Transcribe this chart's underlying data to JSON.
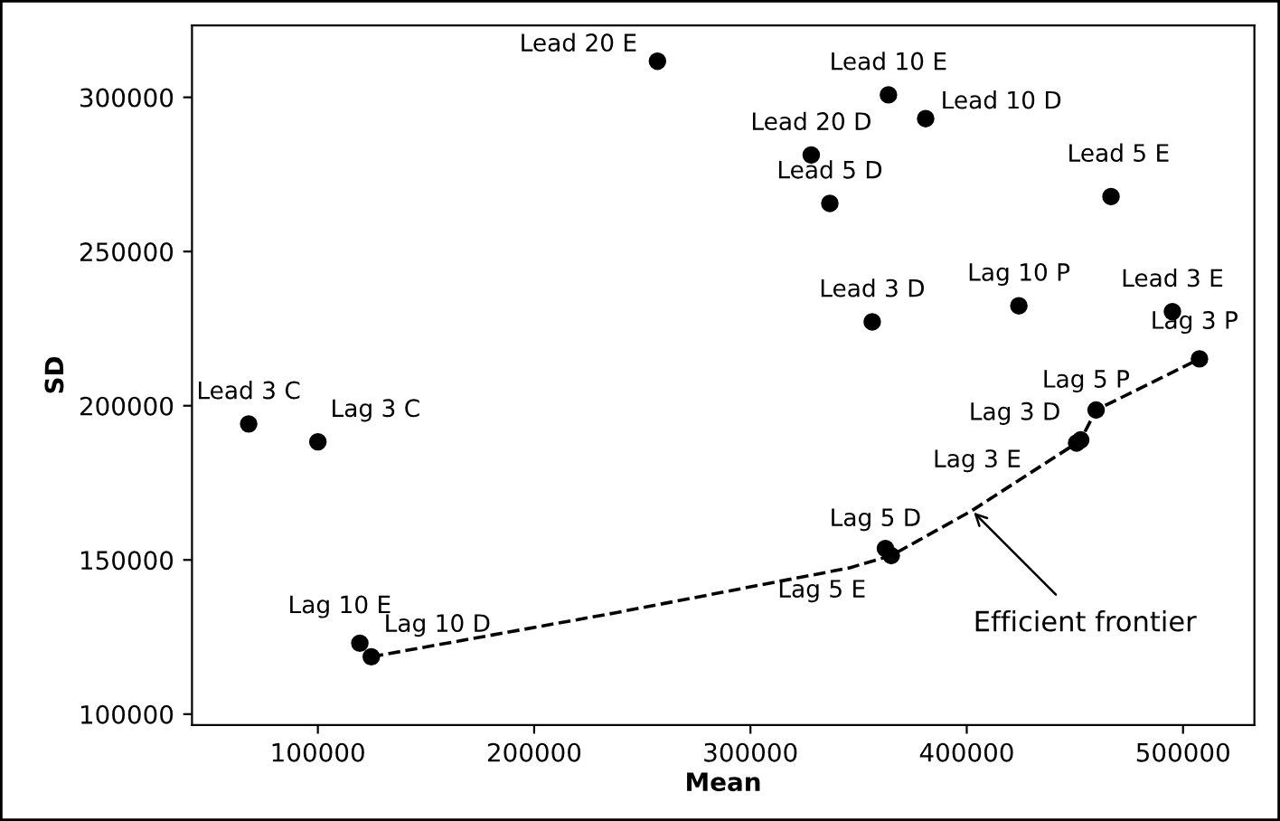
{
  "chart_data": {
    "type": "scatter",
    "xlabel": "Mean",
    "ylabel": "SD",
    "xlim": [
      41800,
      533000
    ],
    "ylim": [
      96500,
      323300
    ],
    "xticks": [
      100000,
      200000,
      300000,
      400000,
      500000
    ],
    "yticks": [
      100000,
      150000,
      200000,
      250000,
      300000
    ],
    "grid": false,
    "legend": false,
    "marker": "circle",
    "series": [
      {
        "color": "#000000",
        "x": [
          257000,
          363800,
          381000,
          328100,
          336700,
          466700,
          356300,
          424100,
          495100,
          507600,
          459800,
          452700,
          450800,
          362400,
          365100,
          68000,
          100000,
          119400,
          124700
        ],
        "values": [
          311700,
          300800,
          293100,
          281300,
          265600,
          267800,
          227200,
          232400,
          230500,
          215200,
          198600,
          188900,
          187900,
          153700,
          151400,
          194100,
          188300,
          123000,
          118600
        ]
      },
      {
        "type": "line",
        "color": "#000000",
        "line_style": "dashed",
        "marker": "none",
        "x": [
          124700,
          237100,
          345600,
          365100,
          402400,
          450800,
          452700,
          459800,
          507600
        ],
        "values": [
          118600,
          132800,
          147400,
          151400,
          166000,
          187900,
          188900,
          198600,
          215200
        ]
      }
    ],
    "annotations": [
      {
        "text": "Lead 20 E",
        "x": 257000,
        "y": 311700
      },
      {
        "text": "Lead 10 E",
        "x": 363800,
        "y": 300800
      },
      {
        "text": "Lead 10 D",
        "x": 381000,
        "y": 293100
      },
      {
        "text": "Lead 20 D",
        "x": 328100,
        "y": 281300
      },
      {
        "text": "Lead 5 D",
        "x": 336700,
        "y": 265600
      },
      {
        "text": "Lead 5 E",
        "x": 466700,
        "y": 267800
      },
      {
        "text": "Lead 3 D",
        "x": 356300,
        "y": 227200
      },
      {
        "text": "Lag 10 P",
        "x": 424100,
        "y": 232400
      },
      {
        "text": "Lead 3 E",
        "x": 495100,
        "y": 230500
      },
      {
        "text": "Lag 3 P",
        "x": 507600,
        "y": 215200
      },
      {
        "text": "Lag 5 P",
        "x": 459800,
        "y": 198600
      },
      {
        "text": "Lag 3 D",
        "x": 452700,
        "y": 188900
      },
      {
        "text": "Lag 3 E",
        "x": 450800,
        "y": 187900
      },
      {
        "text": "Lag 5 D",
        "x": 362400,
        "y": 153700
      },
      {
        "text": "Lag 5 E",
        "x": 365100,
        "y": 151400
      },
      {
        "text": "Lead 3 C",
        "x": 68000,
        "y": 194100
      },
      {
        "text": "Lag 3 C",
        "x": 100000,
        "y": 188300
      },
      {
        "text": "Lag 10 E",
        "x": 119400,
        "y": 123000
      },
      {
        "text": "Lag 10 D",
        "x": 124700,
        "y": 118600
      },
      {
        "text": "Efficient frontier",
        "x": 402400,
        "y": 166000
      }
    ]
  }
}
